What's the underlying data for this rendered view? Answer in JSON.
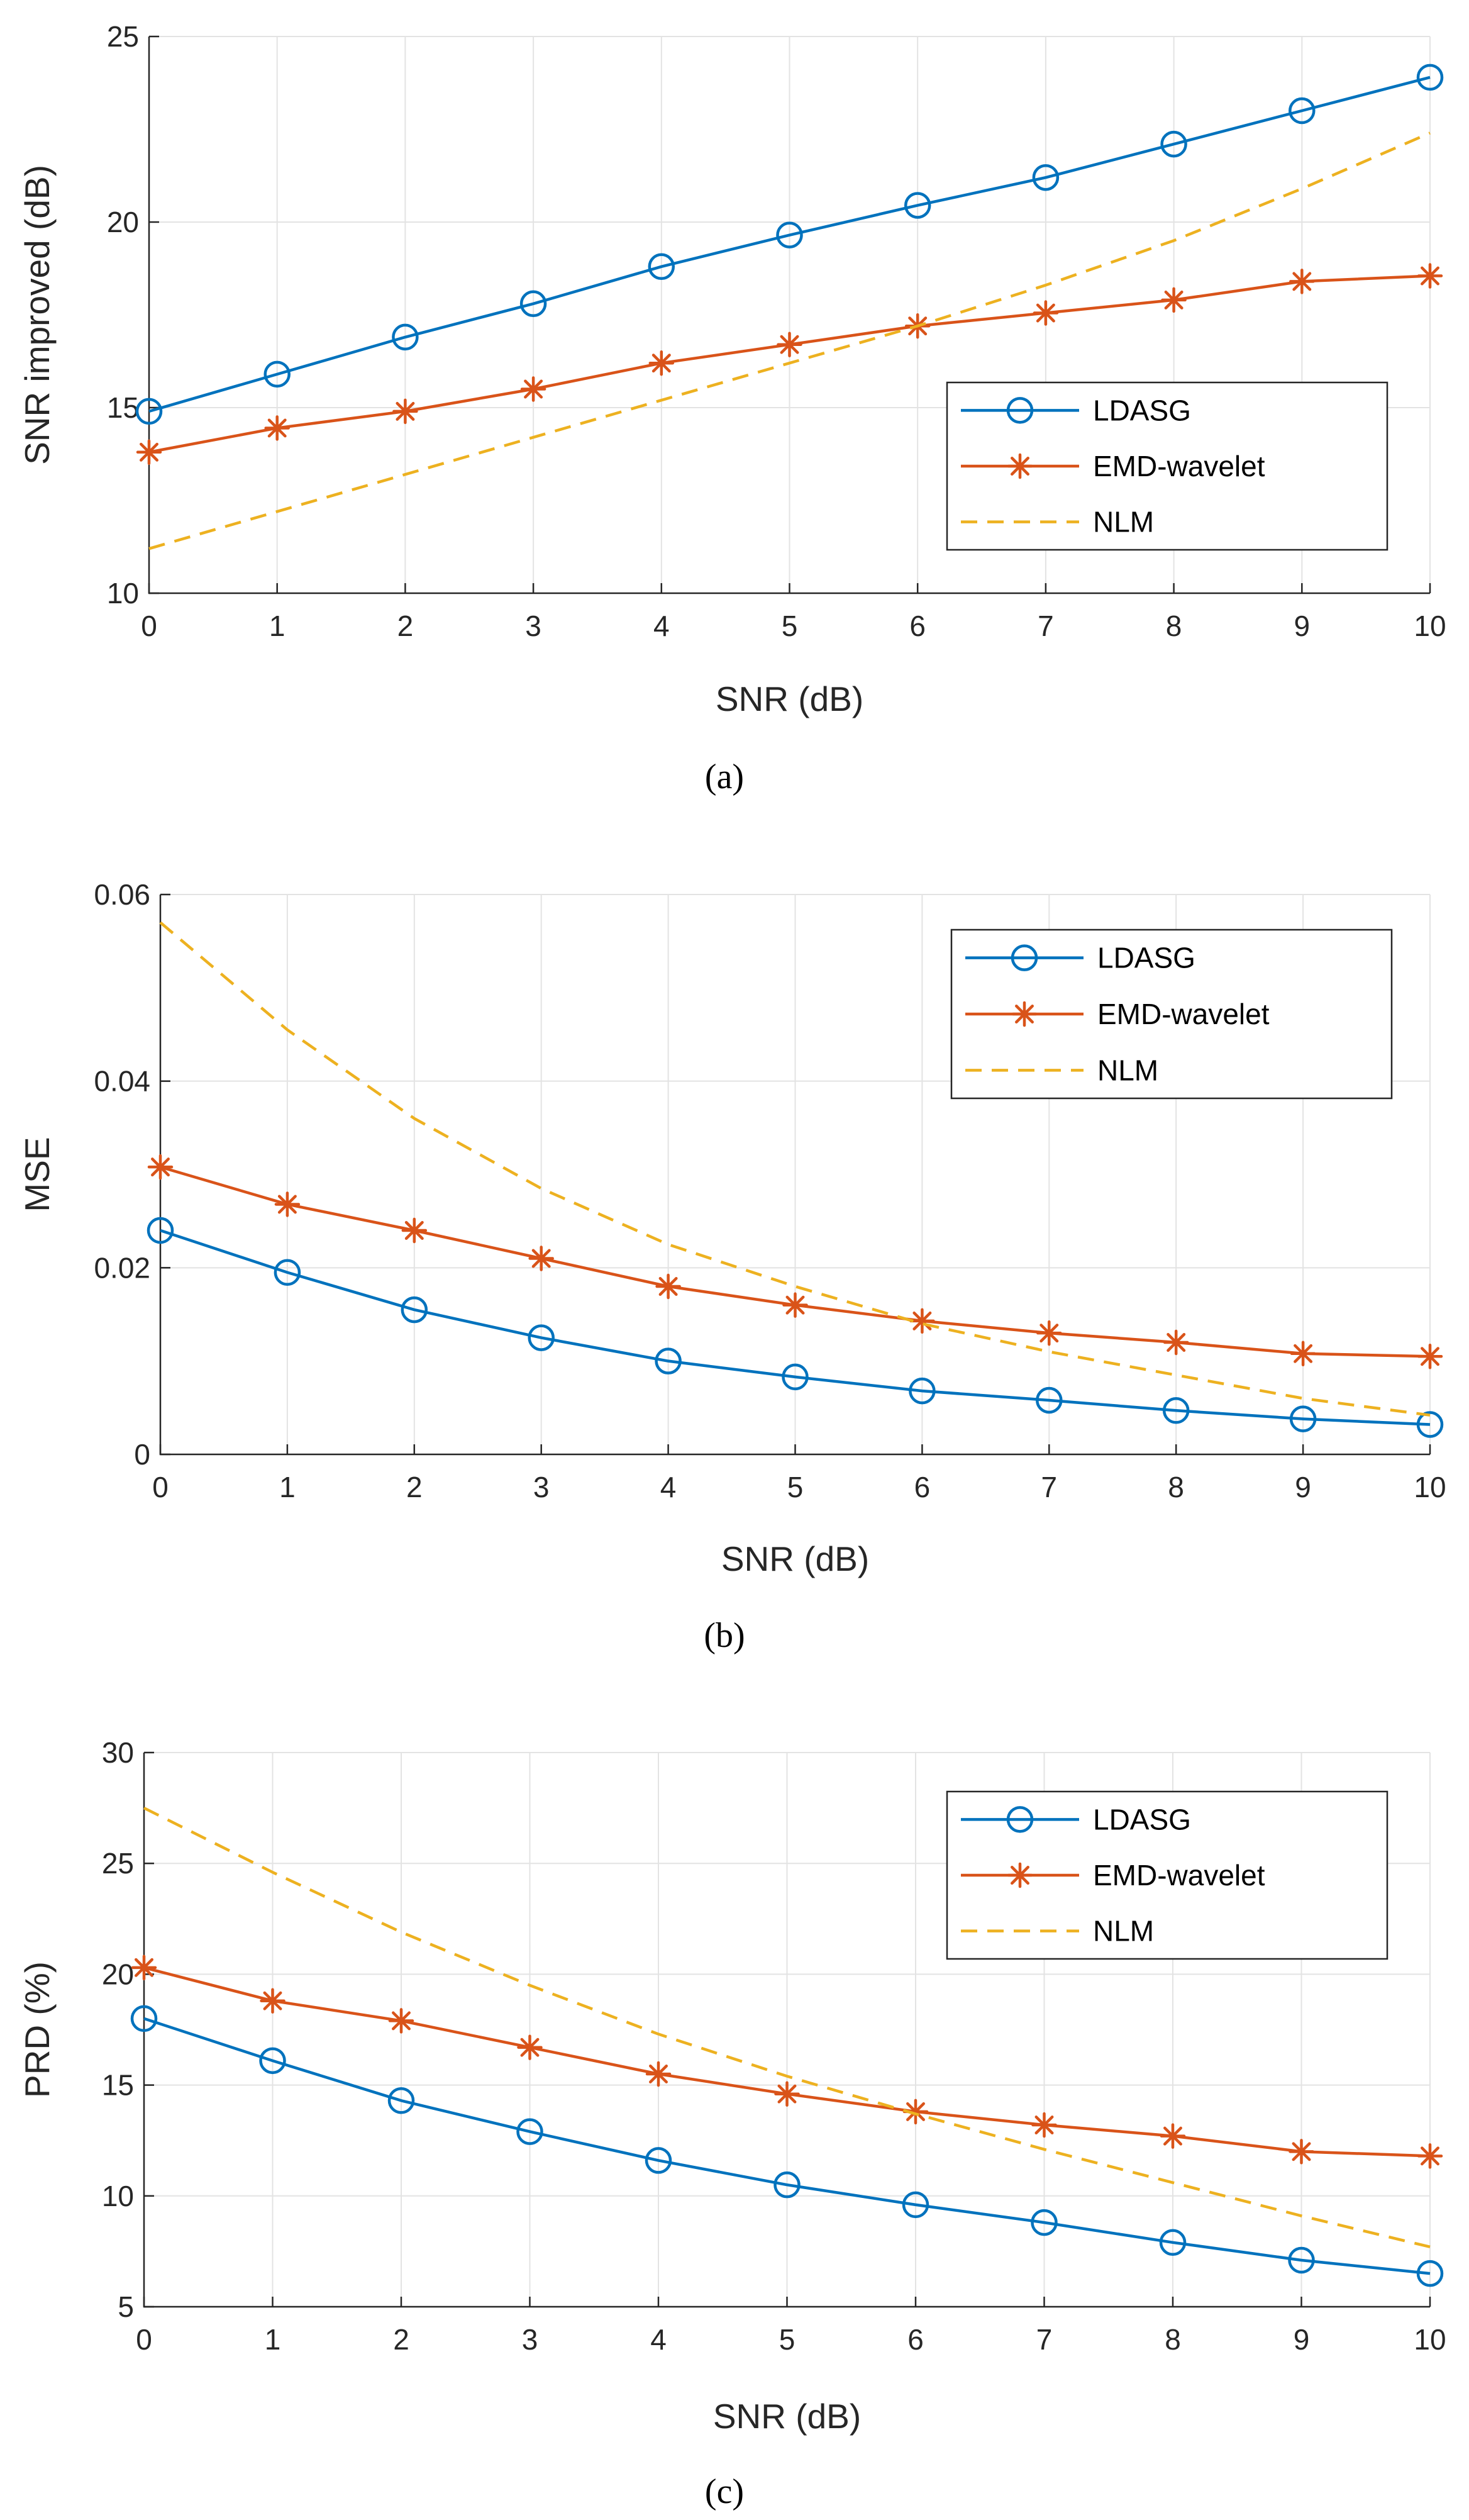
{
  "chart_data": [
    {
      "type": "line",
      "caption": "(a)",
      "xlabel": "SNR (dB)",
      "ylabel": "SNR improved (dB)",
      "x": [
        0,
        1,
        2,
        3,
        4,
        5,
        6,
        7,
        8,
        9,
        10
      ],
      "xlim": [
        0,
        10
      ],
      "ylim": [
        10,
        25
      ],
      "xticks": [
        0,
        1,
        2,
        3,
        4,
        5,
        6,
        7,
        8,
        9,
        10
      ],
      "yticks": [
        10,
        15,
        20,
        25
      ],
      "xtick_labels": [
        "0",
        "1",
        "2",
        "3",
        "4",
        "5",
        "6",
        "7",
        "8",
        "9",
        "10"
      ],
      "ytick_labels": [
        "10",
        "15",
        "20",
        "25"
      ],
      "grid": true,
      "legend_position": "right-lower",
      "series": [
        {
          "name": "LDASG",
          "color": "#0072BD",
          "marker": "circle",
          "dash": "solid",
          "values": [
            14.9,
            15.9,
            16.9,
            17.8,
            18.8,
            19.65,
            20.45,
            21.2,
            22.1,
            23.0,
            23.9
          ]
        },
        {
          "name": "EMD-wavelet",
          "color": "#D95319",
          "marker": "asterisk",
          "dash": "solid",
          "values": [
            13.8,
            14.45,
            14.9,
            15.5,
            16.2,
            16.7,
            17.2,
            17.55,
            17.9,
            18.4,
            18.55
          ]
        },
        {
          "name": "NLM",
          "color": "#EDB120",
          "marker": "none",
          "dash": "dashed",
          "values": [
            11.2,
            12.2,
            13.2,
            14.2,
            15.2,
            16.2,
            17.2,
            18.3,
            19.5,
            20.9,
            22.4
          ]
        }
      ]
    },
    {
      "type": "line",
      "caption": "(b)",
      "xlabel": "SNR (dB)",
      "ylabel": "MSE",
      "x": [
        0,
        1,
        2,
        3,
        4,
        5,
        6,
        7,
        8,
        9,
        10
      ],
      "xlim": [
        0,
        10
      ],
      "ylim": [
        0,
        0.06
      ],
      "xticks": [
        0,
        1,
        2,
        3,
        4,
        5,
        6,
        7,
        8,
        9,
        10
      ],
      "yticks": [
        0,
        0.02,
        0.04,
        0.06
      ],
      "xtick_labels": [
        "0",
        "1",
        "2",
        "3",
        "4",
        "5",
        "6",
        "7",
        "8",
        "9",
        "10"
      ],
      "ytick_labels": [
        "0",
        "0.02",
        "0.04",
        "0.06"
      ],
      "grid": true,
      "legend_position": "top-right",
      "series": [
        {
          "name": "LDASG",
          "color": "#0072BD",
          "marker": "circle",
          "dash": "solid",
          "values": [
            0.024,
            0.0195,
            0.0155,
            0.0125,
            0.01,
            0.0083,
            0.0068,
            0.0058,
            0.0047,
            0.0038,
            0.0032
          ]
        },
        {
          "name": "EMD-wavelet",
          "color": "#D95319",
          "marker": "asterisk",
          "dash": "solid",
          "values": [
            0.0308,
            0.0268,
            0.024,
            0.021,
            0.018,
            0.016,
            0.0143,
            0.013,
            0.012,
            0.0108,
            0.0105
          ]
        },
        {
          "name": "NLM",
          "color": "#EDB120",
          "marker": "none",
          "dash": "dashed",
          "values": [
            0.057,
            0.0455,
            0.036,
            0.0285,
            0.0225,
            0.018,
            0.014,
            0.011,
            0.0085,
            0.006,
            0.0042
          ]
        }
      ]
    },
    {
      "type": "line",
      "caption": "(c)",
      "xlabel": "SNR (dB)",
      "ylabel": "PRD (%)",
      "x": [
        0,
        1,
        2,
        3,
        4,
        5,
        6,
        7,
        8,
        9,
        10
      ],
      "xlim": [
        0,
        10
      ],
      "ylim": [
        5,
        30
      ],
      "xticks": [
        0,
        1,
        2,
        3,
        4,
        5,
        6,
        7,
        8,
        9,
        10
      ],
      "yticks": [
        5,
        10,
        15,
        20,
        25,
        30
      ],
      "xtick_labels": [
        "0",
        "1",
        "2",
        "3",
        "4",
        "5",
        "6",
        "7",
        "8",
        "9",
        "10"
      ],
      "ytick_labels": [
        "5",
        "10",
        "15",
        "20",
        "25",
        "30"
      ],
      "grid": true,
      "legend_position": "top-right",
      "series": [
        {
          "name": "LDASG",
          "color": "#0072BD",
          "marker": "circle",
          "dash": "solid",
          "values": [
            18.0,
            16.1,
            14.3,
            12.9,
            11.6,
            10.5,
            9.6,
            8.8,
            7.9,
            7.1,
            6.5
          ]
        },
        {
          "name": "EMD-wavelet",
          "color": "#D95319",
          "marker": "asterisk",
          "dash": "solid",
          "values": [
            20.3,
            18.8,
            17.9,
            16.7,
            15.5,
            14.6,
            13.8,
            13.2,
            12.7,
            12.0,
            11.8
          ]
        },
        {
          "name": "NLM",
          "color": "#EDB120",
          "marker": "none",
          "dash": "dashed",
          "values": [
            27.5,
            24.6,
            21.9,
            19.5,
            17.3,
            15.4,
            13.7,
            12.1,
            10.6,
            9.1,
            7.7
          ]
        }
      ]
    }
  ]
}
